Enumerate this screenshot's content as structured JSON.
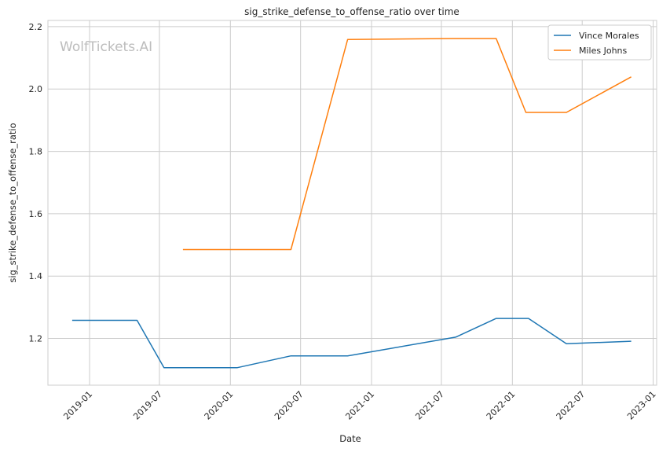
{
  "watermark": "WolfTickets.AI",
  "chart_data": {
    "type": "line",
    "title": "sig_strike_defense_to_offense_ratio over time",
    "xlabel": "Date",
    "ylabel": "sig_strike_defense_to_offense_ratio",
    "xlim": [
      "2018-09-15",
      "2023-01-10"
    ],
    "ylim": [
      1.05,
      2.22
    ],
    "x_ticks": [
      "2019-01",
      "2019-07",
      "2020-01",
      "2020-07",
      "2021-01",
      "2021-07",
      "2022-01",
      "2022-07",
      "2023-01"
    ],
    "y_ticks": [
      "1.2",
      "1.4",
      "1.6",
      "1.8",
      "2.0",
      "2.2"
    ],
    "grid": true,
    "legend_position": "top-right",
    "series": [
      {
        "name": "Vince Morales",
        "color": "#1f77b4",
        "x": [
          "2018-11-17",
          "2019-05-04",
          "2019-07-13",
          "2020-01-18",
          "2020-06-06",
          "2020-10-31",
          "2021-08-07",
          "2021-11-20",
          "2022-02-12",
          "2022-05-21",
          "2022-11-05"
        ],
        "y": [
          1.258,
          1.258,
          1.106,
          1.106,
          1.144,
          1.144,
          1.204,
          1.264,
          1.264,
          1.183,
          1.191
        ]
      },
      {
        "name": "Miles Johns",
        "color": "#ff7f0e",
        "x": [
          "2019-08-31",
          "2020-06-06",
          "2020-10-31",
          "2021-07-31",
          "2021-11-20",
          "2022-02-05",
          "2022-05-21",
          "2022-11-05"
        ],
        "y": [
          1.485,
          1.485,
          2.159,
          2.162,
          2.162,
          1.925,
          1.925,
          2.039
        ]
      }
    ]
  }
}
